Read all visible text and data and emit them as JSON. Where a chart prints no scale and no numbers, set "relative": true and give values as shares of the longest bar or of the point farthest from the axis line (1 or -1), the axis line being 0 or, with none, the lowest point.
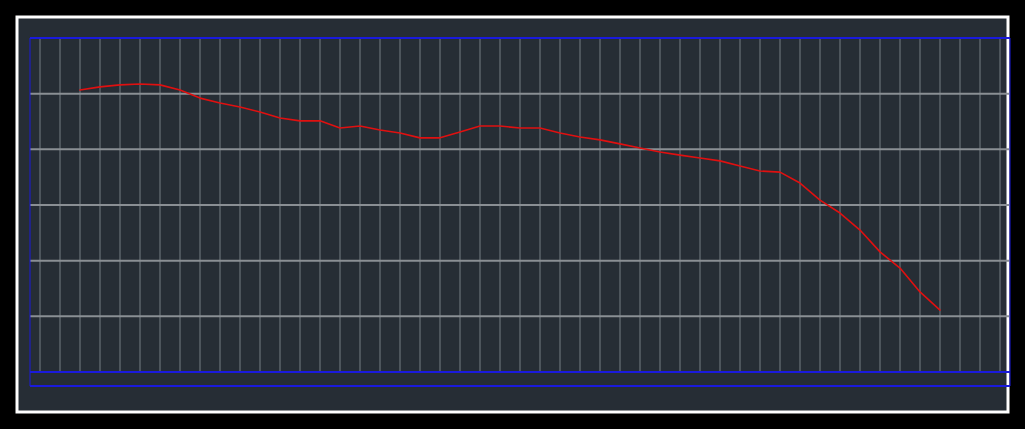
{
  "chart_data": {
    "type": "line",
    "relative": true,
    "grid": true,
    "line_style": "solid",
    "categories": [
      null,
      null,
      null,
      null,
      null,
      null,
      null,
      null,
      null,
      null,
      null,
      null,
      null,
      null,
      null,
      null,
      null,
      null,
      null,
      null,
      null,
      null,
      null,
      null,
      null,
      null,
      null,
      null,
      null,
      null,
      null,
      null,
      null,
      null,
      null,
      null,
      null,
      null,
      null,
      null,
      null,
      null,
      null,
      null,
      null,
      null,
      null,
      null,
      null
    ],
    "series": [
      {
        "color": "#e01010",
        "values": [
          null,
          null,
          0.979,
          0.99,
          0.997,
          1,
          0.997,
          0.979,
          0.951,
          0.934,
          0.92,
          0.903,
          0.882,
          0.872,
          0.872,
          0.847,
          0.854,
          0.84,
          0.83,
          0.813,
          0.813,
          0.833,
          0.854,
          0.854,
          0.847,
          0.847,
          0.83,
          0.816,
          0.806,
          0.792,
          0.778,
          0.764,
          0.753,
          0.743,
          0.733,
          0.715,
          0.698,
          0.694,
          0.656,
          0.597,
          0.552,
          0.493,
          0.417,
          0.361,
          0.278,
          0.215,
          null,
          null,
          null
        ]
      }
    ]
  }
}
